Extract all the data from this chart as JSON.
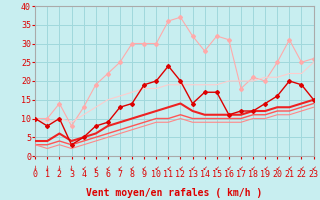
{
  "xlabel": "Vent moyen/en rafales ( km/h )",
  "background_color": "#c8eef0",
  "grid_color": "#a0d8dc",
  "x": [
    0,
    1,
    2,
    3,
    4,
    5,
    6,
    7,
    8,
    9,
    10,
    11,
    12,
    13,
    14,
    15,
    16,
    17,
    18,
    19,
    20,
    21,
    22,
    23
  ],
  "lines": [
    {
      "y": [
        10,
        8,
        10,
        3,
        5,
        8,
        9,
        13,
        14,
        19,
        20,
        24,
        20,
        14,
        17,
        17,
        11,
        12,
        12,
        14,
        16,
        20,
        19,
        15
      ],
      "color": "#dd0000",
      "lw": 1.0,
      "marker": "D",
      "ms": 2.0,
      "zorder": 5
    },
    {
      "y": [
        4,
        4,
        6,
        4,
        5,
        6,
        8,
        9,
        10,
        11,
        12,
        13,
        14,
        12,
        11,
        11,
        11,
        11,
        12,
        12,
        13,
        13,
        14,
        15
      ],
      "color": "#ee2222",
      "lw": 1.5,
      "marker": null,
      "ms": 0,
      "zorder": 4
    },
    {
      "y": [
        3,
        3,
        4,
        3,
        4,
        5,
        6,
        7,
        8,
        9,
        10,
        10,
        11,
        10,
        10,
        10,
        10,
        10,
        11,
        11,
        12,
        12,
        13,
        14
      ],
      "color": "#ff5555",
      "lw": 1.0,
      "marker": null,
      "ms": 0,
      "zorder": 3
    },
    {
      "y": [
        3,
        2,
        3,
        2,
        3,
        4,
        5,
        6,
        7,
        8,
        9,
        9,
        10,
        9,
        9,
        9,
        9,
        9,
        10,
        10,
        11,
        11,
        12,
        13
      ],
      "color": "#ff8888",
      "lw": 0.8,
      "marker": null,
      "ms": 0,
      "zorder": 3
    },
    {
      "y": [
        10,
        10,
        14,
        8,
        13,
        19,
        22,
        25,
        30,
        30,
        30,
        36,
        37,
        32,
        28,
        32,
        31,
        18,
        21,
        20,
        25,
        31,
        25,
        26
      ],
      "color": "#ffaaaa",
      "lw": 0.8,
      "marker": "D",
      "ms": 2.0,
      "zorder": 2
    },
    {
      "y": [
        10,
        9,
        10,
        9,
        11,
        13,
        15,
        16,
        17,
        18,
        18,
        19,
        19,
        19,
        19,
        19,
        20,
        20,
        20,
        21,
        21,
        22,
        22,
        25
      ],
      "color": "#ffcccc",
      "lw": 0.8,
      "marker": null,
      "ms": 0,
      "zorder": 2
    }
  ],
  "ylim": [
    0,
    40
  ],
  "xlim": [
    0,
    23
  ],
  "yticks": [
    0,
    5,
    10,
    15,
    20,
    25,
    30,
    35,
    40
  ],
  "xticks": [
    0,
    1,
    2,
    3,
    4,
    5,
    6,
    7,
    8,
    9,
    10,
    11,
    12,
    13,
    14,
    15,
    16,
    17,
    18,
    19,
    20,
    21,
    22,
    23
  ],
  "tick_color": "#dd0000",
  "label_color": "#dd0000",
  "xlabel_fontsize": 7.0,
  "tick_fontsize": 6.0,
  "arrow_chars": [
    "↓",
    "↓",
    "↓",
    "↓",
    "↙",
    "↙",
    "↙",
    "↙",
    "↙",
    "↙",
    "↙",
    "↙",
    "↙",
    "↙",
    "↙",
    "↙",
    "↙",
    "↙",
    "↙",
    "↙",
    "↙",
    "↙",
    "↙",
    "↙"
  ]
}
